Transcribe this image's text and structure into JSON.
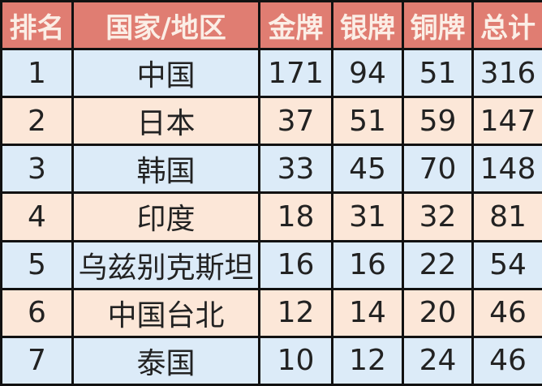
{
  "table": {
    "headers": [
      "排名",
      "国家/地区",
      "金牌",
      "银牌",
      "铜牌",
      "总计"
    ],
    "rows": [
      [
        "1",
        "中国",
        "171",
        "94",
        "51",
        "316"
      ],
      [
        "2",
        "日本",
        "37",
        "51",
        "59",
        "147"
      ],
      [
        "3",
        "韩国",
        "33",
        "45",
        "70",
        "148"
      ],
      [
        "4",
        "印度",
        "18",
        "31",
        "32",
        "81"
      ],
      [
        "5",
        "乌兹别克斯坦",
        "16",
        "16",
        "22",
        "54"
      ],
      [
        "6",
        "中国台北",
        "12",
        "14",
        "20",
        "46"
      ],
      [
        "7",
        "泰国",
        "10",
        "12",
        "24",
        "46"
      ]
    ]
  },
  "colors": {
    "header": "#e07d72",
    "row_odd": "#dcebf8",
    "row_even": "#fce7d8"
  }
}
